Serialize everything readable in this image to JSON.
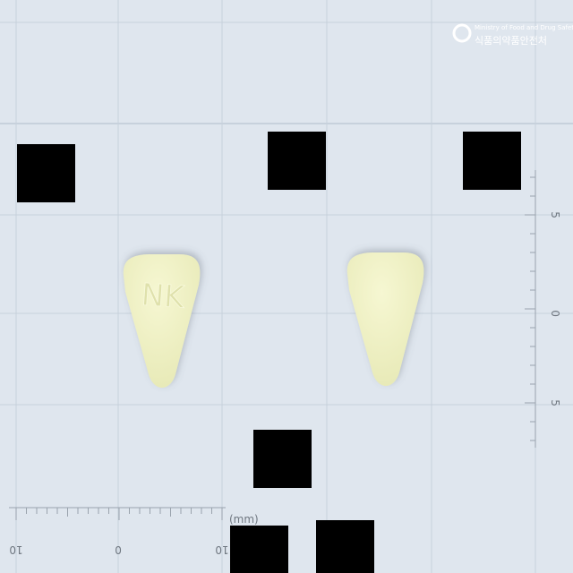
{
  "logo": {
    "korean": "식품의약품안전처",
    "english": "Ministry of Food and Drug Safety"
  },
  "pill_imprint": "NK",
  "bottom_ruler": {
    "labels": [
      "10",
      "0",
      "10"
    ],
    "unit": "(mm)"
  },
  "right_ruler": {
    "labels": [
      "5",
      "0",
      "5"
    ]
  }
}
